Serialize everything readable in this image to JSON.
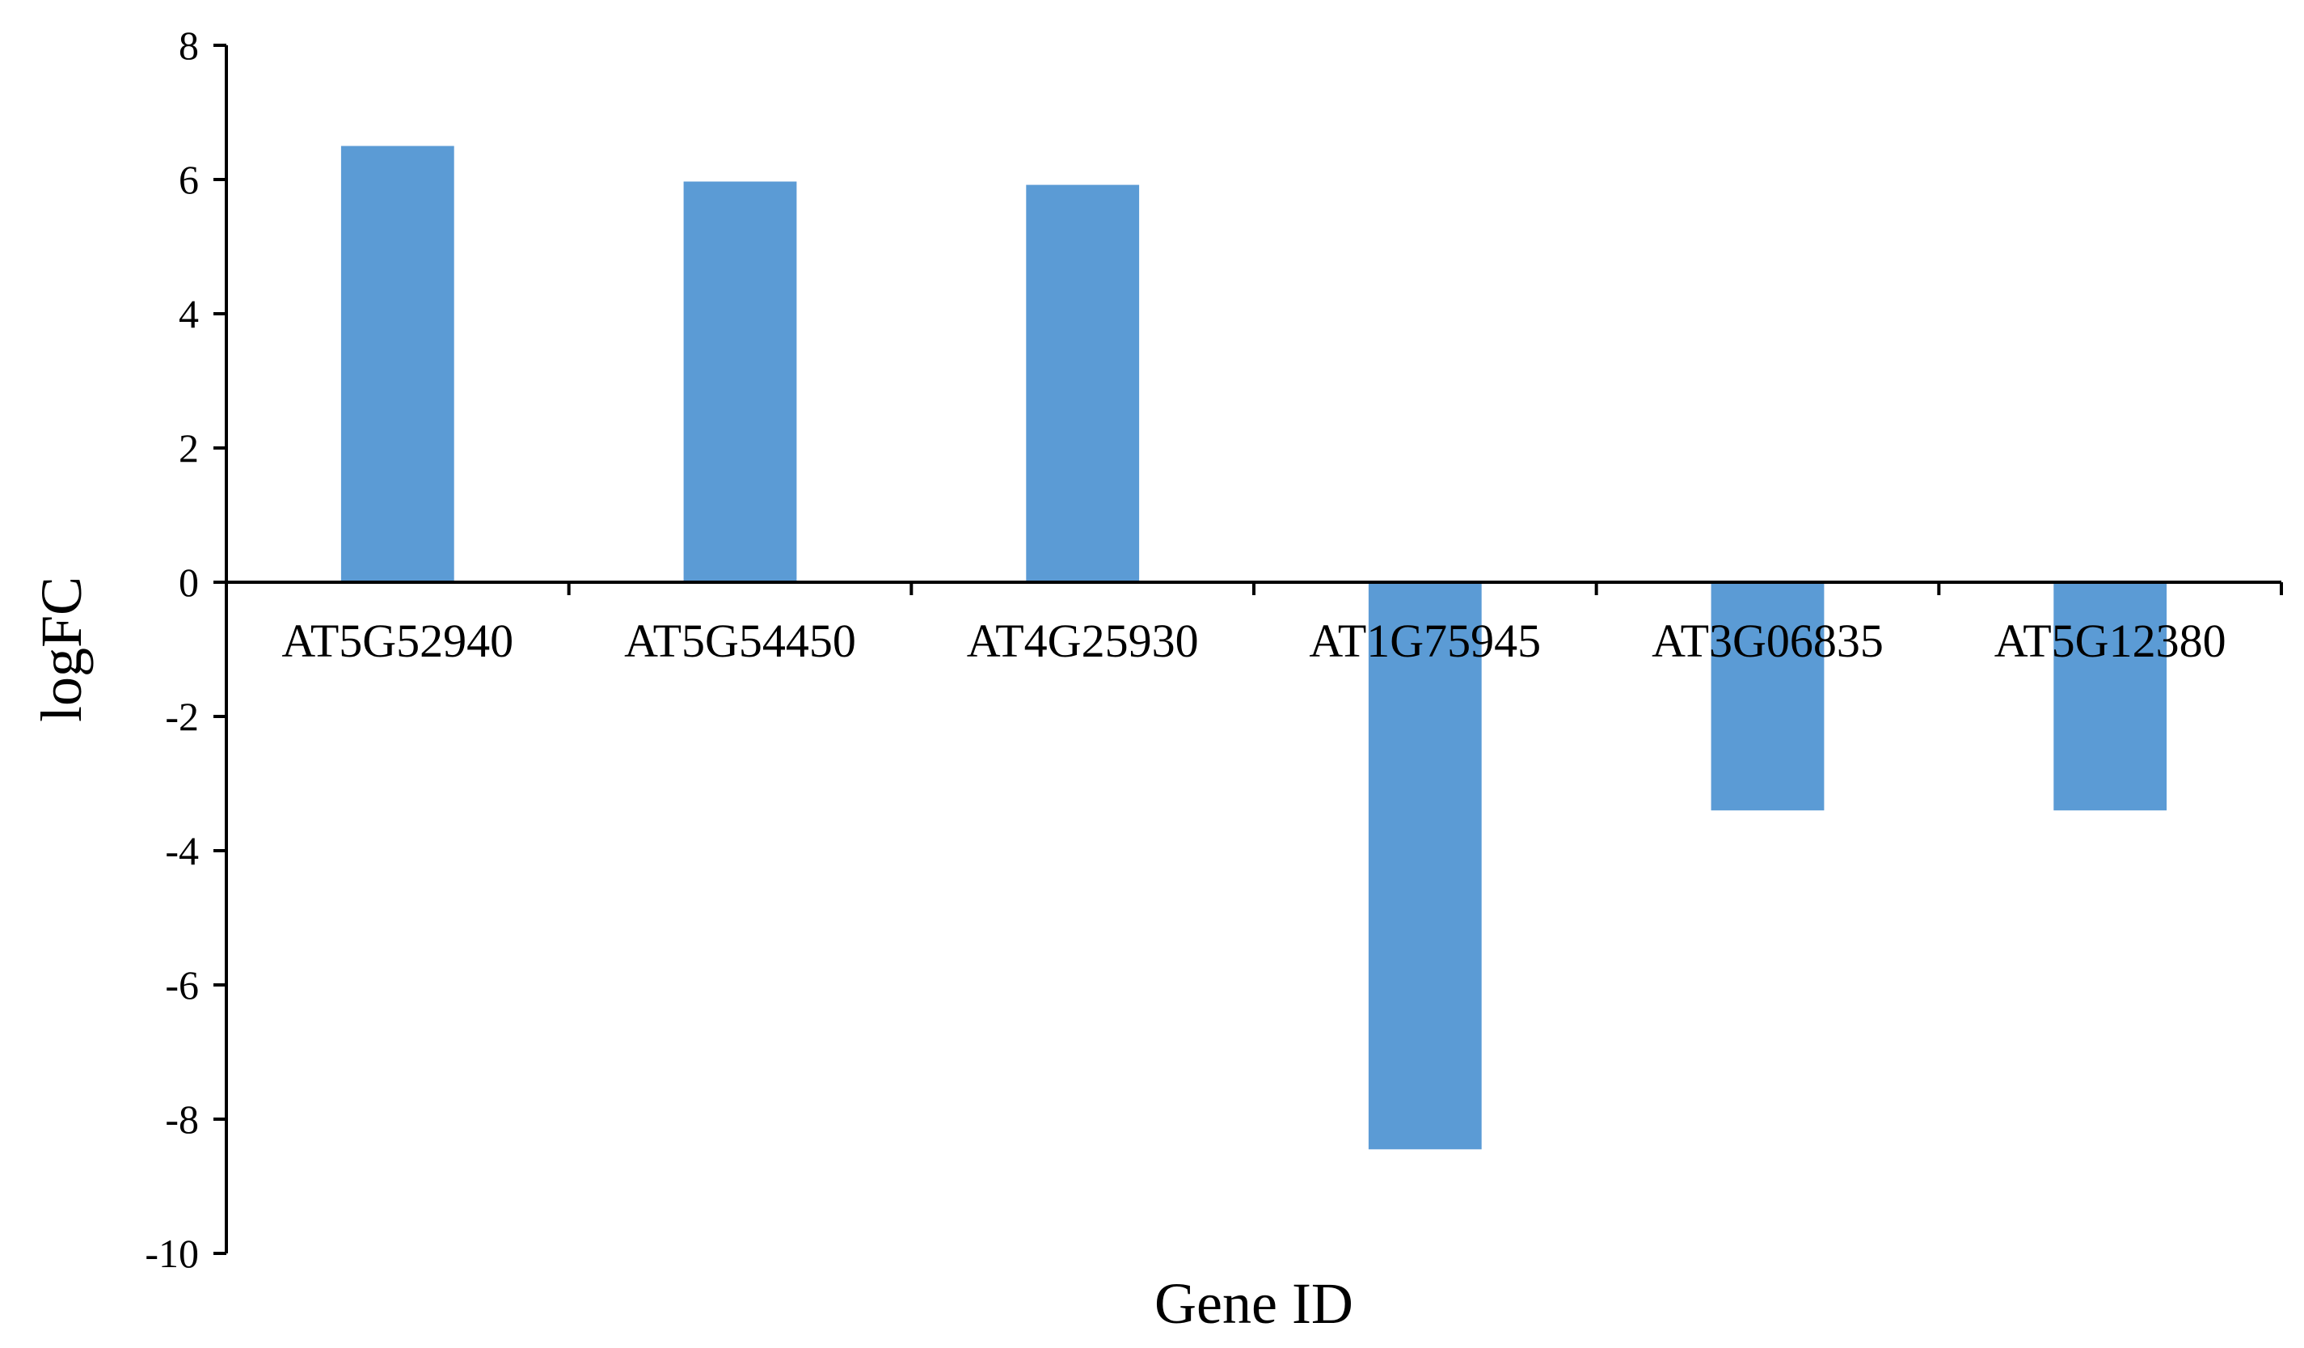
{
  "chart_data": {
    "type": "bar",
    "categories": [
      "AT5G52940",
      "AT5G54450",
      "AT4G25930",
      "AT1G75945",
      "AT3G06835",
      "AT5G12380"
    ],
    "values": [
      6.5,
      5.97,
      5.92,
      -8.45,
      -3.4,
      -3.4
    ],
    "title": "",
    "xlabel": "Gene ID",
    "ylabel": "logFC",
    "ylim": [
      -10,
      8
    ],
    "yticks": [
      8,
      6,
      4,
      2,
      0,
      -2,
      -4,
      -6,
      -8,
      -10
    ],
    "bar_color": "#5b9bd5",
    "grid": false,
    "legend": "none"
  }
}
